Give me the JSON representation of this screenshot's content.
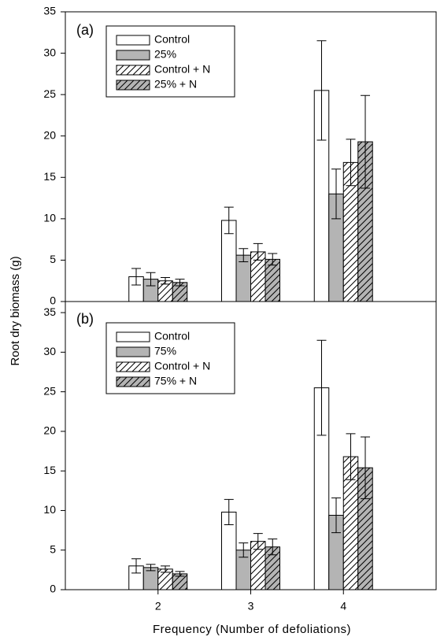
{
  "chart_data": [
    {
      "type": "bar",
      "panel_label": "(a)",
      "ylabel": "Root dry biomass (g)",
      "x": [
        2,
        3,
        4
      ],
      "xlim": [
        1,
        5
      ],
      "ylim": [
        0,
        35
      ],
      "yticks": [
        0,
        5,
        10,
        15,
        20,
        25,
        30,
        35
      ],
      "legend": "upper left",
      "series": [
        {
          "name": "Control",
          "color": "#ffffff",
          "hatch": false,
          "values": [
            3.0,
            9.8,
            25.5
          ],
          "errors": [
            1.0,
            1.6,
            6.0
          ]
        },
        {
          "name": "25%",
          "color": "#b4b4b4",
          "hatch": false,
          "values": [
            2.7,
            5.6,
            13.0
          ],
          "errors": [
            0.8,
            0.8,
            3.0
          ]
        },
        {
          "name": "Control + N",
          "color": "#ffffff",
          "hatch": true,
          "values": [
            2.5,
            6.0,
            16.8
          ],
          "errors": [
            0.4,
            1.0,
            2.8
          ]
        },
        {
          "name": "25% + N",
          "color": "#b4b4b4",
          "hatch": true,
          "values": [
            2.3,
            5.1,
            19.3
          ],
          "errors": [
            0.4,
            0.7,
            5.6
          ]
        }
      ]
    },
    {
      "type": "bar",
      "panel_label": "(b)",
      "xlabel": "Frequency (Number of defoliations)",
      "x": [
        2,
        3,
        4
      ],
      "xlim": [
        1,
        5
      ],
      "xticks": [
        2,
        3,
        4
      ],
      "ylim": [
        0,
        36.4
      ],
      "yticks": [
        0,
        5,
        10,
        15,
        20,
        25,
        30,
        35
      ],
      "legend": "upper left",
      "series": [
        {
          "name": "Control",
          "color": "#ffffff",
          "hatch": false,
          "values": [
            3.0,
            9.8,
            25.5
          ],
          "errors": [
            0.9,
            1.6,
            6.0
          ]
        },
        {
          "name": "75%",
          "color": "#b4b4b4",
          "hatch": false,
          "values": [
            2.8,
            5.0,
            9.4
          ],
          "errors": [
            0.4,
            0.9,
            2.2
          ]
        },
        {
          "name": "Control + N",
          "color": "#ffffff",
          "hatch": true,
          "values": [
            2.6,
            6.1,
            16.8
          ],
          "errors": [
            0.4,
            1.0,
            2.9
          ]
        },
        {
          "name": "75% + N",
          "color": "#b4b4b4",
          "hatch": true,
          "values": [
            2.0,
            5.4,
            15.4
          ],
          "errors": [
            0.3,
            1.0,
            3.9
          ]
        }
      ]
    }
  ]
}
